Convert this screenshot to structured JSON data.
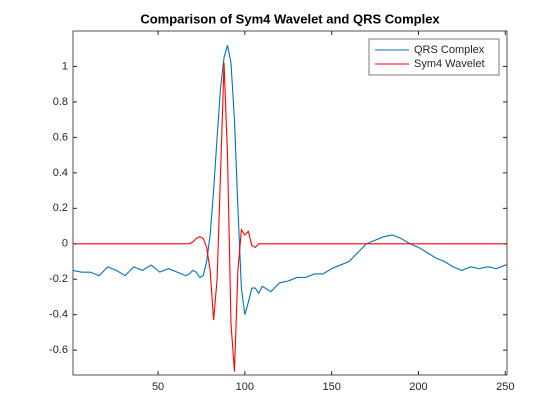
{
  "chart_data": {
    "type": "line",
    "title": "Comparison of Sym4 Wavelet and QRS Complex",
    "x": [
      1,
      6,
      11,
      16,
      21,
      26,
      31,
      36,
      41,
      46,
      51,
      56,
      61,
      66,
      68,
      70,
      72,
      74,
      76,
      78,
      80,
      82,
      84,
      86,
      88,
      90,
      92,
      94,
      96,
      98,
      100,
      102,
      104,
      106,
      108,
      110,
      115,
      120,
      125,
      130,
      135,
      140,
      145,
      150,
      155,
      160,
      165,
      170,
      175,
      180,
      185,
      190,
      195,
      200,
      205,
      210,
      215,
      220,
      225,
      230,
      235,
      240,
      245,
      250,
      251
    ],
    "series": [
      {
        "name": "QRS Complex",
        "color": "#0072bd",
        "values": [
          -0.15,
          -0.16,
          -0.16,
          -0.18,
          -0.13,
          -0.15,
          -0.18,
          -0.13,
          -0.15,
          -0.12,
          -0.16,
          -0.14,
          -0.16,
          -0.18,
          -0.17,
          -0.15,
          -0.16,
          -0.19,
          -0.18,
          -0.1,
          0.05,
          0.3,
          0.6,
          0.88,
          1.05,
          1.12,
          1.02,
          0.7,
          0.2,
          -0.25,
          -0.4,
          -0.33,
          -0.25,
          -0.25,
          -0.28,
          -0.24,
          -0.27,
          -0.22,
          -0.21,
          -0.19,
          -0.19,
          -0.17,
          -0.17,
          -0.14,
          -0.12,
          -0.1,
          -0.05,
          0,
          0.02,
          0.04,
          0.05,
          0.03,
          0,
          -0.02,
          -0.05,
          -0.08,
          -0.1,
          -0.13,
          -0.15,
          -0.13,
          -0.14,
          -0.13,
          -0.14,
          -0.12,
          -0.12
        ]
      },
      {
        "name": "Sym4 Wavelet",
        "color": "#ff0000",
        "values": [
          0,
          0,
          0,
          0,
          0,
          0,
          0,
          0,
          0,
          0,
          0,
          0,
          0,
          0,
          0,
          0.01,
          0.03,
          0.04,
          0.03,
          -0.02,
          -0.15,
          -0.43,
          -0.2,
          0.4,
          1.02,
          0.5,
          -0.45,
          -0.72,
          -0.15,
          0.08,
          0.05,
          0.07,
          -0.01,
          -0.02,
          0,
          0,
          0,
          0,
          0,
          0,
          0,
          0,
          0,
          0,
          0,
          0,
          0,
          0,
          0,
          0,
          0,
          0,
          0,
          0,
          0,
          0,
          0,
          0,
          0,
          0,
          0,
          0,
          0,
          0,
          0
        ]
      }
    ],
    "xlim": [
      1,
      251
    ],
    "ylim": [
      -0.74,
      1.2
    ],
    "xticks": [
      50,
      100,
      150,
      200,
      250
    ],
    "yticks": [
      -0.6,
      -0.4,
      -0.2,
      0,
      0.2,
      0.4,
      0.6,
      0.8,
      1
    ],
    "grid": false,
    "legend": "northeast"
  }
}
